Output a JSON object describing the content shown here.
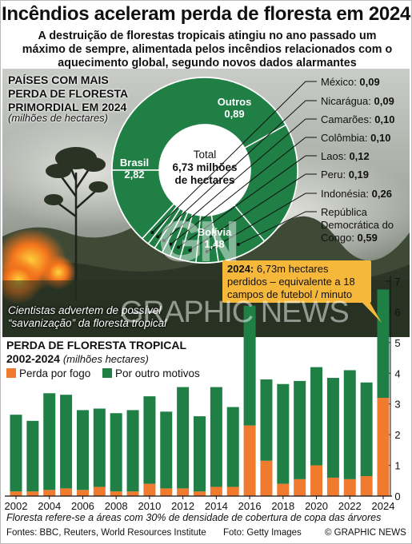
{
  "title": "Incêndios aceleram perda de floresta em 2024",
  "subtitle": "A destruição de florestas tropicais atingiu no ano passado um máximo de sempre, alimentada pelos incêndios relacionados com o aquecimento global, segundo novos dados alarmantes",
  "donut": {
    "heading_lines": [
      "PAÍSES COM MAIS",
      "PERDA DE FLORESTA",
      "PRIMORDIAL EM 2024"
    ],
    "unit": "(milhões de hectares)",
    "center_lines": [
      "Total",
      "6,73 milhões",
      "de hectares"
    ],
    "color": "#1f7f45"
  },
  "photo_caption": [
    "Cientistas advertem de possível",
    "“savanização” da floresta tropical"
  ],
  "callout": {
    "year": "2024:",
    "text": "6,73m hectares perdidos – equivalente a 18 campos de futebol / minuto"
  },
  "bar_chart": {
    "heading": "PERDA DE FLORESTA TROPICAL",
    "period": "2002-2024",
    "unit": "(milhões hectares)"
  },
  "legend": [
    {
      "label": "Perda por fogo",
      "color": "#f07a2e"
    },
    {
      "label": "Por outro motivos",
      "color": "#1f7f45"
    }
  ],
  "footnote": "Floresta refere-se a áreas com 30% de densidade de cobertura de copa das árvores",
  "sources": "Fontes: BBC, Reuters, World Resources Institute",
  "photo_credit": "Foto: Getty Images",
  "copyright": "© GRAPHIC NEWS",
  "watermark": {
    "logo": "GN",
    "text": "GRAPHIC NEWS"
  },
  "chart_data": [
    {
      "type": "pie",
      "title": "PAÍSES COM MAIS PERDA DE FLORESTA PRIMORDIAL EM 2024",
      "unit": "(milhões de hectares)",
      "total": 6.73,
      "slices": [
        {
          "label": "Brasil",
          "value": 2.82,
          "display": "2,82"
        },
        {
          "label": "Bolívia",
          "value": 1.48,
          "display": "1,48"
        },
        {
          "label": "República Democrática do Congo",
          "value": 0.59,
          "display": "0,59"
        },
        {
          "label": "Indonésia",
          "value": 0.26,
          "display": "0,26"
        },
        {
          "label": "Peru",
          "value": 0.19,
          "display": "0,19"
        },
        {
          "label": "Laos",
          "value": 0.12,
          "display": "0,12"
        },
        {
          "label": "Colômbia",
          "value": 0.1,
          "display": "0,10"
        },
        {
          "label": "Camarões",
          "value": 0.1,
          "display": "0,10"
        },
        {
          "label": "Nicarágua",
          "value": 0.09,
          "display": "0,09"
        },
        {
          "label": "México",
          "value": 0.09,
          "display": "0,09"
        },
        {
          "label": "Outros",
          "value": 0.89,
          "display": "0,89"
        }
      ]
    },
    {
      "type": "bar",
      "stacked": true,
      "title": "PERDA DE FLORESTA TROPICAL 2002-2024",
      "ylabel": "(milhões hectares)",
      "ylim": [
        0,
        7
      ],
      "yticks": [
        0,
        1,
        2,
        3,
        4,
        5,
        6,
        7
      ],
      "x": [
        2002,
        2003,
        2004,
        2005,
        2006,
        2007,
        2008,
        2009,
        2010,
        2011,
        2012,
        2013,
        2014,
        2015,
        2016,
        2017,
        2018,
        2019,
        2020,
        2021,
        2022,
        2023,
        2024
      ],
      "xtick_labels": [
        "2002",
        "2004",
        "2006",
        "2008",
        "2010",
        "2012",
        "2014",
        "2016",
        "2018",
        "2020",
        "2022",
        "2024"
      ],
      "series": [
        {
          "name": "Perda por fogo",
          "color": "#f07a2e",
          "values": [
            0.15,
            0.15,
            0.2,
            0.25,
            0.2,
            0.3,
            0.15,
            0.15,
            0.4,
            0.25,
            0.25,
            0.15,
            0.3,
            0.3,
            2.3,
            1.15,
            0.4,
            0.55,
            1.0,
            0.6,
            0.55,
            0.65,
            3.2
          ]
        },
        {
          "name": "Por outro motivos",
          "color": "#1f7f45",
          "values": [
            2.5,
            2.3,
            3.15,
            3.05,
            2.6,
            2.55,
            2.55,
            2.65,
            2.85,
            2.5,
            3.3,
            2.45,
            3.25,
            2.6,
            3.9,
            2.65,
            3.25,
            3.2,
            3.2,
            3.25,
            3.55,
            3.05,
            3.53
          ]
        }
      ]
    }
  ]
}
